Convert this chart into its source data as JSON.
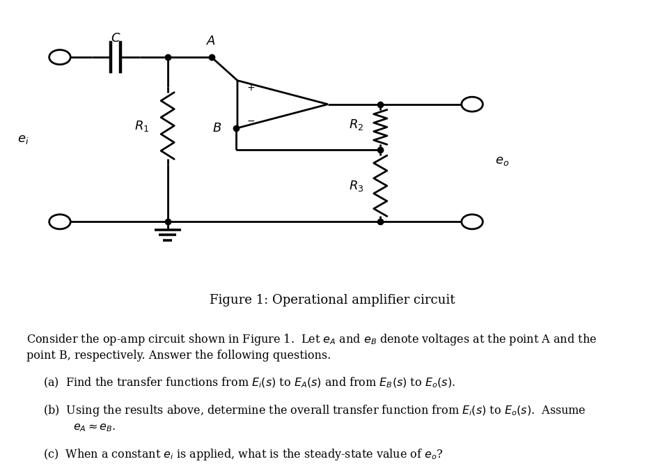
{
  "title": "Figure 1: Operational amplifier circuit",
  "title_fontsize": 13,
  "line_color": "#000000",
  "background_color": "#ffffff",
  "line_width": 2.0,
  "body_lines": [
    "Consider the op-amp circuit shown in Figure 1.  Let $e_A$ and $e_B$ denote voltages at the point A and the",
    "point B, respectively. Answer the following questions.",
    "",
    "(a)  Find the transfer functions from $E_i(s)$ to $E_A(s)$ and from $E_B(s)$ to $E_o(s)$.",
    "",
    "(b)  Using the results above, determine the overall transfer function from $E_i(s)$ to $E_o(s)$.  Assume",
    "        $e_A \\approx e_B$.",
    "",
    "(c)  When a constant $e_i$ is applied, what is the steady-state value of $e_o$?"
  ],
  "body_indent_flags": [
    false,
    false,
    false,
    true,
    false,
    true,
    true,
    false,
    true
  ],
  "body_fontsize": 11.5
}
